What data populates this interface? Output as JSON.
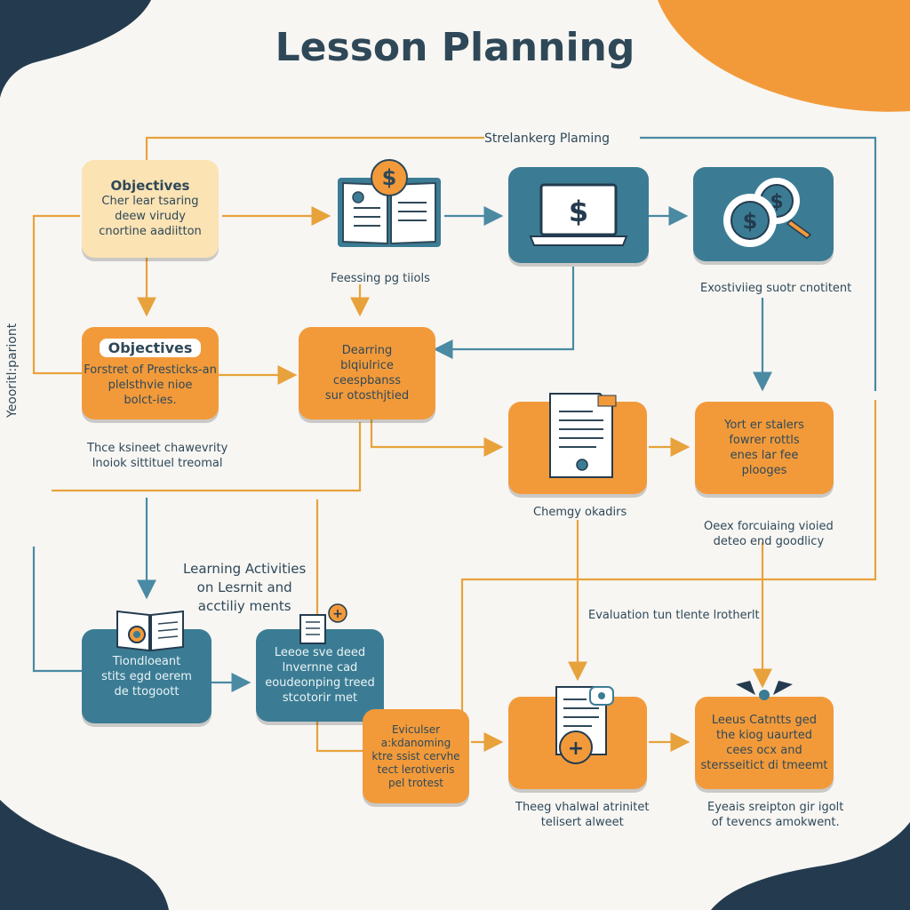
{
  "title": "Lesson Planning",
  "top_label": "Strelankerg Plaming",
  "vertical_label": "Yeooritl:pariont",
  "colors": {
    "orange": "#f29a3a",
    "teal": "#3b7c94",
    "cream": "#fbe3b4",
    "navy": "#243b4f",
    "line_orange": "#e8a23c",
    "line_teal": "#4a8aa3"
  },
  "nodes": {
    "objectives_top": {
      "heading": "Objectives",
      "lines": [
        "Cher lear tsaring",
        "deew virudy",
        "cnortine aadiitton"
      ]
    },
    "objectives_mid": {
      "pill": "Objectives",
      "lines": [
        "Forstret of Presticks-an",
        "plelsthvie nioe",
        "bolct-ies."
      ]
    },
    "learning_center": {
      "lines": [
        "Dearring",
        "blqiulrice",
        "ceespbanss",
        "sur otosthjtied"
      ]
    },
    "coins_top_right": {
      "icon": "coins-icon"
    },
    "laptop_top": {
      "icon": "laptop-dollar-icon"
    },
    "book_top": {
      "icon": "book-dollar-icon"
    },
    "doc_mid": {
      "icon": "document-icon"
    },
    "right_mid": {
      "lines": [
        "Yort er stalers",
        "fowrer rottls",
        "enes lar fee",
        "plooges"
      ]
    },
    "teal_left_bottom": {
      "lines": [
        "Tiondloeant",
        "stits egd oerem",
        "de ttogoott"
      ]
    },
    "teal_mid_bottom": {
      "lines": [
        "Leeoe sve deed",
        "lnvernne cad",
        "eoudeonping treed",
        "stcotorir met"
      ]
    },
    "evaluation_small": {
      "lines": [
        "Eviculser",
        "a:kdanoming",
        "ktre ssist cervhe",
        "tect lerotiveris",
        "pel trotest"
      ]
    },
    "doc_bottom": {
      "icon": "document-plus-icon"
    },
    "right_bottom": {
      "lines": [
        "Leeus Catntts ged",
        "the kiog uaurted",
        "cees ocx and",
        "stersseitict di tmeemt"
      ]
    }
  },
  "labels": {
    "feessing": "Feessing pg tiiols",
    "exostiviing": "Exostiviieg suotr cnotitent",
    "thce_ksineet": [
      "Thce ksineet chawevrity",
      "lnoiok sittituel treomal"
    ],
    "cherngy": "Chemgy okadirs",
    "oeex": [
      "Oeex forcuiaing vioied",
      "deteo end goodlicy"
    ],
    "learning_activities": [
      "Learning Activities",
      "on Lesrnit and",
      "acctiliy ments"
    ],
    "evaluation": "Evaluation tun tlente lrotherlt",
    "theeg": [
      "Theeg vhalwal atrinitet",
      "telisert alweet"
    ],
    "eyeis": [
      "Eyeais sreipton gir igolt",
      "of tevencs amokwent."
    ]
  }
}
